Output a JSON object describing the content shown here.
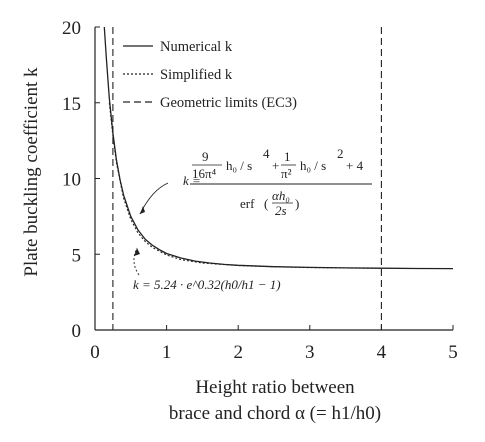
{
  "chart_data": {
    "type": "line",
    "title": "",
    "xlabel": [
      "Height ratio between",
      "brace and chord α (= h1/h0)"
    ],
    "ylabel": "Plate buckling coefficient k",
    "xlim": [
      0,
      5
    ],
    "ylim": [
      0,
      20
    ],
    "xticks": [
      0,
      1,
      2,
      3,
      4,
      5
    ],
    "yticks": [
      0,
      5,
      10,
      15,
      20
    ],
    "grid": false,
    "legend_position": "top-right",
    "series": [
      {
        "name": "Numerical k",
        "style": "solid",
        "x": [
          0.13,
          0.16,
          0.2,
          0.25,
          0.3,
          0.35,
          0.4,
          0.5,
          0.6,
          0.7,
          0.8,
          0.9,
          1.0,
          1.2,
          1.4,
          1.6,
          1.8,
          2.0,
          2.5,
          3.0,
          3.5,
          4.0,
          4.5,
          5.0
        ],
        "y": [
          20.0,
          17.8,
          15.3,
          13.0,
          11.2,
          9.9,
          8.9,
          7.5,
          6.6,
          6.0,
          5.6,
          5.3,
          5.05,
          4.75,
          4.55,
          4.42,
          4.33,
          4.27,
          4.18,
          4.13,
          4.1,
          4.08,
          4.06,
          4.05
        ]
      },
      {
        "name": "Simplified k",
        "style": "dotted",
        "x": [
          0.2,
          0.25,
          0.3,
          0.4,
          0.5,
          0.6,
          0.7,
          0.8,
          1.0,
          1.2,
          1.5,
          2.0,
          2.5,
          3.0,
          3.5,
          4.0
        ],
        "y": [
          15.0,
          12.8,
          11.0,
          8.7,
          7.3,
          6.4,
          5.85,
          5.45,
          4.95,
          4.65,
          4.42,
          4.25,
          4.17,
          4.12,
          4.09,
          4.07
        ]
      }
    ],
    "reference_lines": [
      {
        "name": "Geometric limits (EC3)",
        "style": "dashed",
        "x": 0.25
      },
      {
        "name": "Geometric limits (EC3)",
        "style": "dashed",
        "x": 4.0
      }
    ],
    "legend": [
      {
        "label": "Numerical k",
        "style": "solid"
      },
      {
        "label": "Simplified k",
        "style": "dotted"
      },
      {
        "label": "Geometric limits (EC3)",
        "style": "dashed"
      }
    ],
    "annotations": {
      "eq1": {
        "lhs": "k =",
        "num1": "9",
        "den1": "16π⁴",
        "paren1": "h₀ / s",
        "pow1": "4",
        "num2": "1",
        "den2": "π²",
        "paren2": "h₀ / s",
        "pow2": "2",
        "tail": "+ 4",
        "den_fn": "erf",
        "den_arg_num": "αh₀",
        "den_arg_den": "2s"
      },
      "eq2": "k = 5.24 · e^0.32(h0/h1 − 1)"
    }
  }
}
